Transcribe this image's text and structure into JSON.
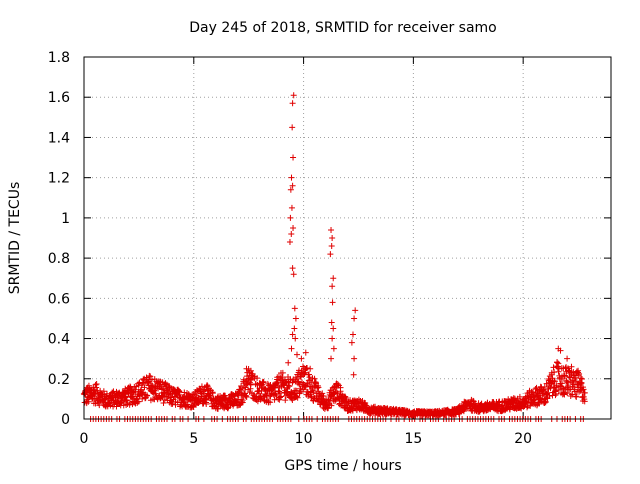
{
  "chart_data": {
    "type": "scatter",
    "title": "Day 245 of 2018, SRMTID for receiver samo",
    "xlabel": "GPS time / hours",
    "ylabel": "SRMTID / TECUs",
    "xlim": [
      0,
      24
    ],
    "ylim": [
      0,
      1.8
    ],
    "xticks": [
      0,
      5,
      10,
      15,
      20
    ],
    "xtick_labels": [
      "0",
      "5",
      "10",
      "15",
      "20"
    ],
    "yticks": [
      0,
      0.2,
      0.4,
      0.6,
      0.8,
      1,
      1.2,
      1.4,
      1.6,
      1.8
    ],
    "ytick_labels": [
      "0",
      "0.2",
      "0.4",
      "0.6",
      "0.8",
      "1",
      "1.2",
      "1.4",
      "1.6",
      "1.8"
    ],
    "grid": true,
    "marker": "plus",
    "marker_color": "#e00000",
    "series": [
      {
        "name": "SRMTID",
        "envelope_x": [
          0,
          0.5,
          1,
          2,
          3,
          3.5,
          4,
          5,
          5.5,
          6,
          7,
          7.5,
          8,
          8.5,
          9,
          9.5,
          10,
          10.5,
          11,
          11.5,
          12,
          12.5,
          13,
          14,
          15,
          16,
          17,
          17.5,
          18,
          19,
          20,
          20.5,
          21,
          21.5,
          22,
          22.5,
          22.8
        ],
        "envelope_y": [
          0.12,
          0.14,
          0.1,
          0.12,
          0.17,
          0.15,
          0.12,
          0.1,
          0.14,
          0.09,
          0.1,
          0.2,
          0.15,
          0.13,
          0.18,
          0.15,
          0.22,
          0.15,
          0.08,
          0.15,
          0.07,
          0.08,
          0.05,
          0.04,
          0.03,
          0.03,
          0.04,
          0.08,
          0.06,
          0.07,
          0.09,
          0.12,
          0.13,
          0.22,
          0.2,
          0.18,
          0.15
        ],
        "spikes": [
          {
            "x": 9.55,
            "y": 1.61
          },
          {
            "x": 9.5,
            "y": 1.57
          },
          {
            "x": 9.48,
            "y": 1.45
          },
          {
            "x": 9.52,
            "y": 1.3
          },
          {
            "x": 9.45,
            "y": 1.2
          },
          {
            "x": 9.5,
            "y": 1.16
          },
          {
            "x": 9.42,
            "y": 1.14
          },
          {
            "x": 9.47,
            "y": 1.05
          },
          {
            "x": 9.4,
            "y": 1.0
          },
          {
            "x": 9.52,
            "y": 0.95
          },
          {
            "x": 9.44,
            "y": 0.92
          },
          {
            "x": 9.38,
            "y": 0.88
          },
          {
            "x": 9.5,
            "y": 0.75
          },
          {
            "x": 9.55,
            "y": 0.72
          },
          {
            "x": 9.6,
            "y": 0.55
          },
          {
            "x": 9.65,
            "y": 0.5
          },
          {
            "x": 9.58,
            "y": 0.45
          },
          {
            "x": 9.5,
            "y": 0.42
          },
          {
            "x": 9.62,
            "y": 0.4
          },
          {
            "x": 9.45,
            "y": 0.35
          },
          {
            "x": 9.7,
            "y": 0.32
          },
          {
            "x": 9.3,
            "y": 0.28
          },
          {
            "x": 11.25,
            "y": 0.94
          },
          {
            "x": 11.3,
            "y": 0.9
          },
          {
            "x": 11.28,
            "y": 0.86
          },
          {
            "x": 11.22,
            "y": 0.82
          },
          {
            "x": 11.35,
            "y": 0.7
          },
          {
            "x": 11.3,
            "y": 0.66
          },
          {
            "x": 11.32,
            "y": 0.58
          },
          {
            "x": 11.28,
            "y": 0.48
          },
          {
            "x": 11.35,
            "y": 0.45
          },
          {
            "x": 11.3,
            "y": 0.4
          },
          {
            "x": 11.38,
            "y": 0.35
          },
          {
            "x": 11.25,
            "y": 0.3
          },
          {
            "x": 12.35,
            "y": 0.54
          },
          {
            "x": 12.3,
            "y": 0.5
          },
          {
            "x": 12.25,
            "y": 0.42
          },
          {
            "x": 12.2,
            "y": 0.38
          },
          {
            "x": 12.3,
            "y": 0.3
          },
          {
            "x": 12.28,
            "y": 0.22
          },
          {
            "x": 9.9,
            "y": 0.3
          },
          {
            "x": 10.1,
            "y": 0.33
          },
          {
            "x": 10.3,
            "y": 0.25
          },
          {
            "x": 10.5,
            "y": 0.2
          },
          {
            "x": 7.4,
            "y": 0.25
          },
          {
            "x": 7.6,
            "y": 0.24
          },
          {
            "x": 21.6,
            "y": 0.35
          },
          {
            "x": 21.7,
            "y": 0.34
          },
          {
            "x": 22.0,
            "y": 0.3
          },
          {
            "x": 22.2,
            "y": 0.26
          },
          {
            "x": 21.3,
            "y": 0.22
          },
          {
            "x": 22.5,
            "y": 0.24
          }
        ],
        "zero_line": {
          "x_start": 0.3,
          "x_end": 22.8,
          "y": 0
        }
      }
    ]
  }
}
